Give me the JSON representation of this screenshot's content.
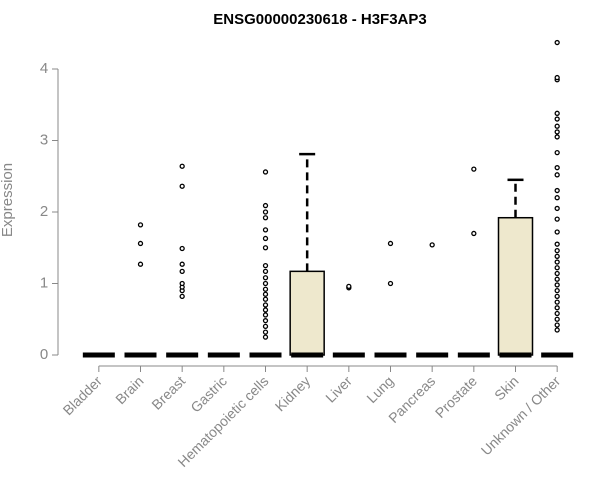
{
  "chart_data": {
    "type": "box",
    "title": "ENSG00000230618 - H3F3AP3",
    "xlabel": "",
    "ylabel": "Expression",
    "ylim": [
      0,
      4.45
    ],
    "yticks": [
      0,
      1,
      2,
      3,
      4
    ],
    "grid": false,
    "box_fill": "#EEE8CD",
    "categories": [
      "Bladder",
      "Brain",
      "Breast",
      "Gastric",
      "Hematopoietic cells",
      "Kidney",
      "Liver",
      "Lung",
      "Pancreas",
      "Prostate",
      "Skin",
      "Unknown / Other"
    ],
    "boxes": [
      {
        "category": "Bladder",
        "q1": 0,
        "median": 0,
        "q3": 0,
        "whisker_low": 0,
        "whisker_high": 0,
        "outliers": []
      },
      {
        "category": "Brain",
        "q1": 0,
        "median": 0,
        "q3": 0,
        "whisker_low": 0,
        "whisker_high": 0,
        "outliers": [
          1.27,
          1.56,
          1.82
        ]
      },
      {
        "category": "Breast",
        "q1": 0,
        "median": 0,
        "q3": 0,
        "whisker_low": 0,
        "whisker_high": 0,
        "outliers": [
          0.82,
          0.9,
          0.95,
          1.0,
          1.17,
          1.27,
          1.49,
          2.36,
          2.64
        ]
      },
      {
        "category": "Gastric",
        "q1": 0,
        "median": 0,
        "q3": 0,
        "whisker_low": 0,
        "whisker_high": 0,
        "outliers": []
      },
      {
        "category": "Hematopoietic cells",
        "q1": 0,
        "median": 0,
        "q3": 0,
        "whisker_low": 0,
        "whisker_high": 0,
        "outliers": [
          0.25,
          0.32,
          0.4,
          0.48,
          0.56,
          0.63,
          0.7,
          0.78,
          0.85,
          0.92,
          1.0,
          1.08,
          1.17,
          1.25,
          1.5,
          1.63,
          1.75,
          1.92,
          2.0,
          2.09,
          2.56
        ]
      },
      {
        "category": "Kidney",
        "q1": 0,
        "median": 0,
        "q3": 1.17,
        "whisker_low": 0,
        "whisker_high": 2.81,
        "outliers": []
      },
      {
        "category": "Liver",
        "q1": 0,
        "median": 0,
        "q3": 0,
        "whisker_low": 0,
        "whisker_high": 0,
        "outliers": [
          0.94,
          0.96
        ]
      },
      {
        "category": "Lung",
        "q1": 0,
        "median": 0,
        "q3": 0,
        "whisker_low": 0,
        "whisker_high": 0,
        "outliers": [
          1.0,
          1.56
        ]
      },
      {
        "category": "Pancreas",
        "q1": 0,
        "median": 0,
        "q3": 0,
        "whisker_low": 0,
        "whisker_high": 0,
        "outliers": [
          1.54
        ]
      },
      {
        "category": "Prostate",
        "q1": 0,
        "median": 0,
        "q3": 0,
        "whisker_low": 0,
        "whisker_high": 0,
        "outliers": [
          1.7,
          2.6
        ]
      },
      {
        "category": "Skin",
        "q1": 0,
        "median": 0,
        "q3": 1.92,
        "whisker_low": 0,
        "whisker_high": 2.45,
        "outliers": []
      },
      {
        "category": "Unknown / Other",
        "q1": 0,
        "median": 0,
        "q3": 0,
        "whisker_low": 0,
        "whisker_high": 0,
        "outliers": [
          0.35,
          0.42,
          0.5,
          0.58,
          0.66,
          0.74,
          0.82,
          0.9,
          0.98,
          1.06,
          1.14,
          1.22,
          1.3,
          1.38,
          1.46,
          1.55,
          1.72,
          1.9,
          2.05,
          2.2,
          2.3,
          2.52,
          2.62,
          2.83,
          3.05,
          3.12,
          3.2,
          3.3,
          3.38,
          3.85,
          3.88,
          4.37
        ]
      }
    ]
  }
}
